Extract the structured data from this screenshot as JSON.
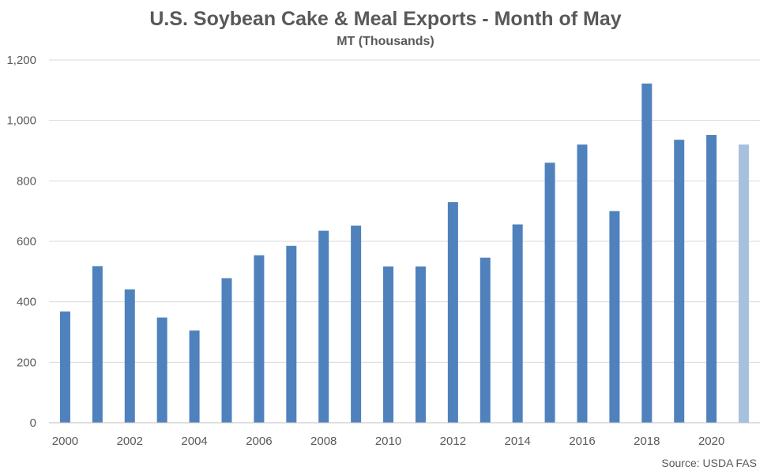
{
  "chart_data": {
    "type": "bar",
    "title": "U.S. Soybean Cake & Meal Exports - Month of May",
    "subtitle": "MT (Thousands)",
    "xlabel": "",
    "ylabel": "",
    "source": "Source: USDA FAS",
    "categories": [
      "2000",
      "2001",
      "2002",
      "2003",
      "2004",
      "2005",
      "2006",
      "2007",
      "2008",
      "2009",
      "2010",
      "2011",
      "2012",
      "2013",
      "2014",
      "2015",
      "2016",
      "2017",
      "2018",
      "2019",
      "2020",
      "2021"
    ],
    "x_tick_labels": [
      "2000",
      "2002",
      "2004",
      "2006",
      "2008",
      "2010",
      "2012",
      "2014",
      "2016",
      "2018",
      "2020"
    ],
    "values": [
      368,
      518,
      441,
      348,
      305,
      478,
      554,
      585,
      635,
      652,
      517,
      517,
      730,
      546,
      656,
      860,
      920,
      700,
      1122,
      936,
      952,
      920
    ],
    "ylim": [
      0,
      1200
    ],
    "y_ticks": [
      0,
      200,
      400,
      600,
      800,
      1000,
      1200
    ],
    "y_tick_labels": [
      "0",
      "200",
      "400",
      "600",
      "800",
      "1,000",
      "1,200"
    ],
    "grid": true,
    "legend": "none",
    "colors": {
      "bar": "#4F81BD",
      "bar_highlight": "#A7C0DE",
      "grid": "#D9D9D9",
      "axis": "#BFBFBF"
    },
    "highlight_index": 21
  }
}
